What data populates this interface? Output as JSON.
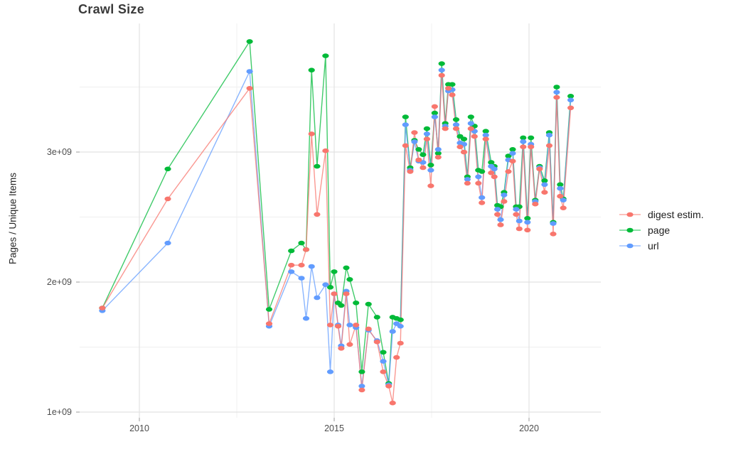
{
  "title": "Crawl Size",
  "y_axis": {
    "title": "Pages / Unique Items",
    "tick_labels": [
      "1e+09",
      "2e+09",
      "3e+09"
    ],
    "tick_values": [
      1,
      2,
      3
    ],
    "minor_values": [
      1.5,
      2.5,
      3.5
    ]
  },
  "x_axis": {
    "tick_labels": [
      "2010",
      "2015",
      "2020"
    ],
    "tick_values": [
      2010,
      2015,
      2020
    ],
    "minor_values": [
      2012.5,
      2017.5
    ]
  },
  "legend": {
    "items": [
      {
        "label": "digest estim.",
        "color": "#F8766D"
      },
      {
        "label": "page",
        "color": "#00BA38"
      },
      {
        "label": "url",
        "color": "#619CFF"
      }
    ]
  },
  "colors": {
    "digest": "#F8766D",
    "page": "#00BA38",
    "url": "#619CFF",
    "grid_major": "#E2E2E2",
    "grid_minor": "#EFEFEF",
    "tick": "#9b9b9b",
    "tick_label": "#4d4d4d",
    "title_text": "#3a3a3a"
  },
  "chart_data": {
    "type": "line",
    "title": "Crawl Size",
    "xlabel": "",
    "ylabel": "Pages / Unique Items",
    "xlim": [
      2008.4,
      2021.85
    ],
    "ylim_e9": [
      0.95,
      4.0
    ],
    "grid": true,
    "legend_position": "right",
    "marker": "ellipse-dot",
    "x_years": [
      2009.05,
      2010.73,
      2012.83,
      2013.33,
      2013.9,
      2014.16,
      2014.28,
      2014.42,
      2014.56,
      2014.78,
      2014.9,
      2015.0,
      2015.1,
      2015.18,
      2015.31,
      2015.4,
      2015.56,
      2015.71,
      2015.88,
      2016.1,
      2016.26,
      2016.4,
      2016.5,
      2016.6,
      2016.7,
      2016.83,
      2016.95,
      2017.06,
      2017.17,
      2017.28,
      2017.38,
      2017.48,
      2017.58,
      2017.67,
      2017.76,
      2017.85,
      2017.93,
      2018.03,
      2018.13,
      2018.23,
      2018.33,
      2018.42,
      2018.51,
      2018.6,
      2018.7,
      2018.79,
      2018.89,
      2019.03,
      2019.11,
      2019.19,
      2019.27,
      2019.36,
      2019.47,
      2019.58,
      2019.67,
      2019.75,
      2019.85,
      2019.96,
      2020.05,
      2020.16,
      2020.27,
      2020.4,
      2020.52,
      2020.62,
      2020.71,
      2020.8,
      2020.88,
      2021.07
    ],
    "series": [
      {
        "name": "digest estim.",
        "color": "#F8766D",
        "values_e9": [
          1.8,
          2.64,
          3.49,
          1.68,
          2.13,
          2.13,
          2.25,
          3.14,
          2.52,
          3.01,
          1.67,
          1.91,
          1.66,
          1.49,
          1.91,
          1.52,
          1.67,
          1.17,
          1.64,
          1.54,
          1.31,
          1.2,
          1.07,
          1.42,
          1.53,
          3.05,
          2.85,
          3.15,
          2.94,
          2.88,
          3.1,
          2.74,
          3.35,
          2.96,
          3.59,
          3.18,
          3.49,
          3.44,
          3.18,
          3.04,
          3.0,
          2.76,
          3.18,
          3.12,
          2.76,
          2.61,
          3.1,
          2.84,
          2.81,
          2.52,
          2.44,
          2.62,
          2.85,
          2.93,
          2.52,
          2.41,
          3.04,
          2.4,
          3.04,
          2.6,
          2.87,
          2.69,
          3.05,
          2.37,
          3.42,
          2.66,
          2.57,
          3.34
        ]
      },
      {
        "name": "page",
        "color": "#00BA38",
        "values_e9": [
          1.8,
          2.87,
          3.85,
          1.79,
          2.24,
          2.3,
          2.25,
          3.63,
          2.89,
          3.74,
          1.96,
          2.08,
          1.84,
          1.82,
          2.11,
          2.02,
          1.84,
          1.31,
          1.83,
          1.73,
          1.46,
          1.22,
          1.73,
          1.72,
          1.71,
          3.27,
          2.88,
          3.09,
          3.02,
          2.98,
          3.18,
          2.9,
          3.3,
          2.99,
          3.68,
          3.22,
          3.52,
          3.52,
          3.25,
          3.12,
          3.1,
          2.81,
          3.27,
          3.2,
          2.86,
          2.85,
          3.16,
          2.92,
          2.89,
          2.59,
          2.58,
          2.69,
          2.97,
          3.02,
          2.58,
          2.58,
          3.11,
          2.49,
          3.11,
          2.63,
          2.89,
          2.78,
          3.15,
          2.46,
          3.5,
          2.75,
          2.64,
          3.43
        ]
      },
      {
        "name": "url",
        "color": "#619CFF",
        "values_e9": [
          1.78,
          2.3,
          3.62,
          1.66,
          2.08,
          2.03,
          1.72,
          2.12,
          1.88,
          1.98,
          1.31,
          1.91,
          1.67,
          1.51,
          1.93,
          1.67,
          1.65,
          1.2,
          1.63,
          1.55,
          1.39,
          1.21,
          1.62,
          1.68,
          1.66,
          3.21,
          2.86,
          3.08,
          2.93,
          2.92,
          3.14,
          2.86,
          3.27,
          3.02,
          3.63,
          3.2,
          3.47,
          3.48,
          3.21,
          3.07,
          3.06,
          2.79,
          3.22,
          3.16,
          2.81,
          2.65,
          3.13,
          2.89,
          2.87,
          2.56,
          2.48,
          2.67,
          2.94,
          2.99,
          2.56,
          2.47,
          3.08,
          2.46,
          3.06,
          2.62,
          2.88,
          2.75,
          3.13,
          2.45,
          3.46,
          2.72,
          2.63,
          3.4
        ]
      }
    ]
  }
}
